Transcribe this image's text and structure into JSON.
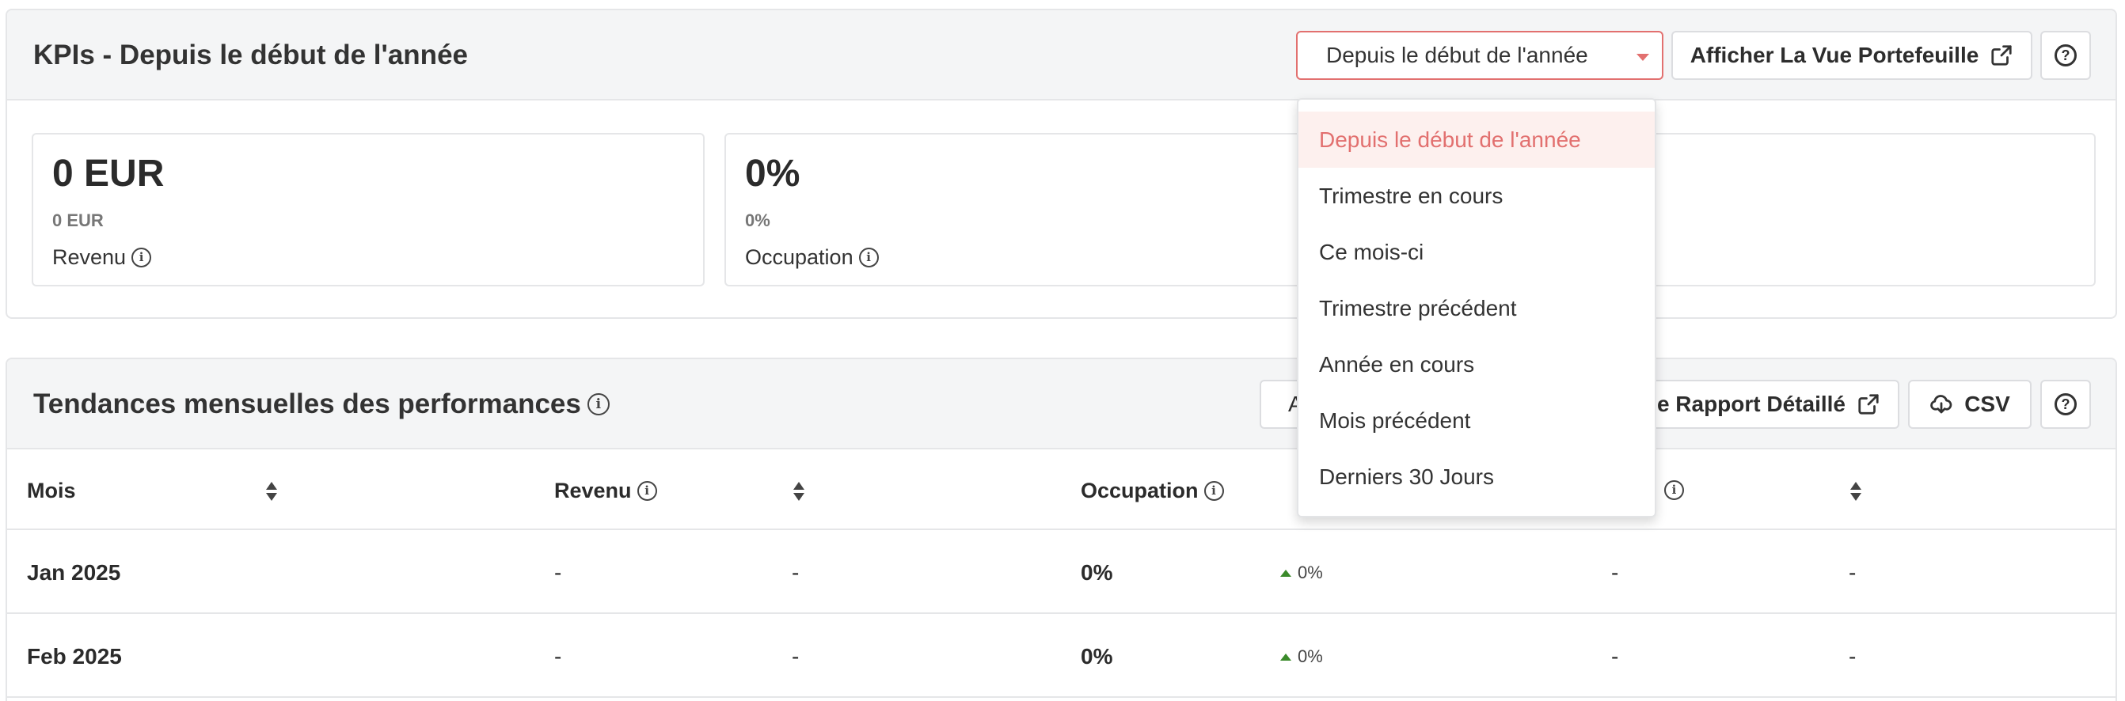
{
  "kpi_panel": {
    "title": "KPIs - Depuis le début de l'année",
    "period_select": {
      "value": "Depuis le début de l'année"
    },
    "portfolio_button": "Afficher La Vue Portefeuille",
    "help_symbol": "?",
    "cards": [
      {
        "value": "0 EUR",
        "sub": "0 EUR",
        "label": "Revenu"
      },
      {
        "value": "0%",
        "sub": "0%",
        "label": "Occupation"
      }
    ]
  },
  "period_dropdown": {
    "options": [
      "Depuis le début de l'année",
      "Trimestre en cours",
      "Ce mois-ci",
      "Trimestre précédent",
      "Année en cours",
      "Mois précédent",
      "Derniers 30 Jours"
    ],
    "selected_index": 0
  },
  "trend_panel": {
    "title": "Tendances mensuelles des performances",
    "partial_button_prefix": "A",
    "report_button": "e Rapport Détaillé",
    "csv_button": "CSV",
    "help_symbol": "?",
    "columns": [
      "Mois",
      "Revenu",
      "Occupation"
    ],
    "rows": [
      {
        "month": "Jan 2025",
        "revenue": "-",
        "revenue_delta": "-",
        "occupation": "0%",
        "occupation_delta": "0%",
        "col4": "-",
        "col4_delta": "-"
      },
      {
        "month": "Feb 2025",
        "revenue": "-",
        "revenue_delta": "-",
        "occupation": "0%",
        "occupation_delta": "0%",
        "col4": "-",
        "col4_delta": "-"
      }
    ]
  },
  "info_symbol": "i",
  "colors": {
    "accent": "#e2706f",
    "selected_bg": "#fdf0ee",
    "header_bg": "#f4f5f6",
    "border": "#e5e6e8",
    "positive": "#3a8a2a"
  },
  "icons": {
    "external_link": "external-link-icon",
    "download": "cloud-download-icon",
    "help": "question-circle-icon",
    "info": "info-icon",
    "sort": "sort-icon",
    "trend_up": "triangle-up-icon"
  }
}
